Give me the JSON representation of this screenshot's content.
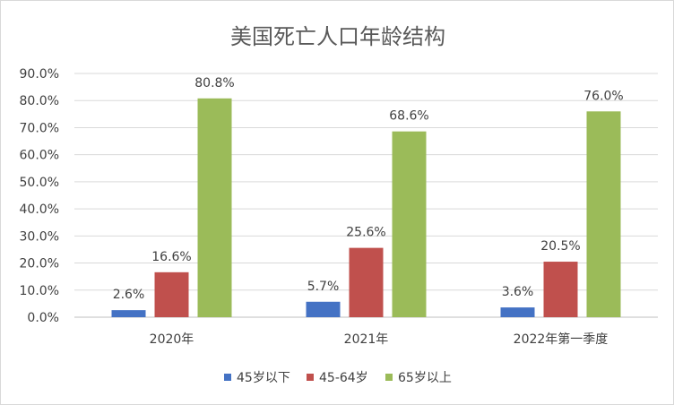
{
  "chart_data": {
    "type": "bar",
    "title": "美国死亡人口年龄结构",
    "xlabel": "",
    "ylabel": "",
    "categories": [
      "2020年",
      "2021年",
      "2022年第一季度"
    ],
    "series": [
      {
        "name": "45岁以下",
        "values": [
          2.6,
          5.7,
          3.6
        ],
        "labels": [
          "2.6%",
          "5.7%",
          "3.6%"
        ],
        "color": "#4472c4"
      },
      {
        "name": "45-64岁",
        "values": [
          16.6,
          25.6,
          20.5
        ],
        "labels": [
          "16.6%",
          "25.6%",
          "20.5%"
        ],
        "color": "#c0504d"
      },
      {
        "name": "65岁以上",
        "values": [
          80.8,
          68.6,
          76.0
        ],
        "labels": [
          "80.8%",
          "68.6%",
          "76.0%"
        ],
        "color": "#9bbb59"
      }
    ],
    "ylim": [
      0,
      90
    ],
    "yticks": [
      "0.0%",
      "10.0%",
      "20.0%",
      "30.0%",
      "40.0%",
      "50.0%",
      "60.0%",
      "70.0%",
      "80.0%",
      "90.0%"
    ],
    "grid": true,
    "legend_position": "bottom"
  }
}
